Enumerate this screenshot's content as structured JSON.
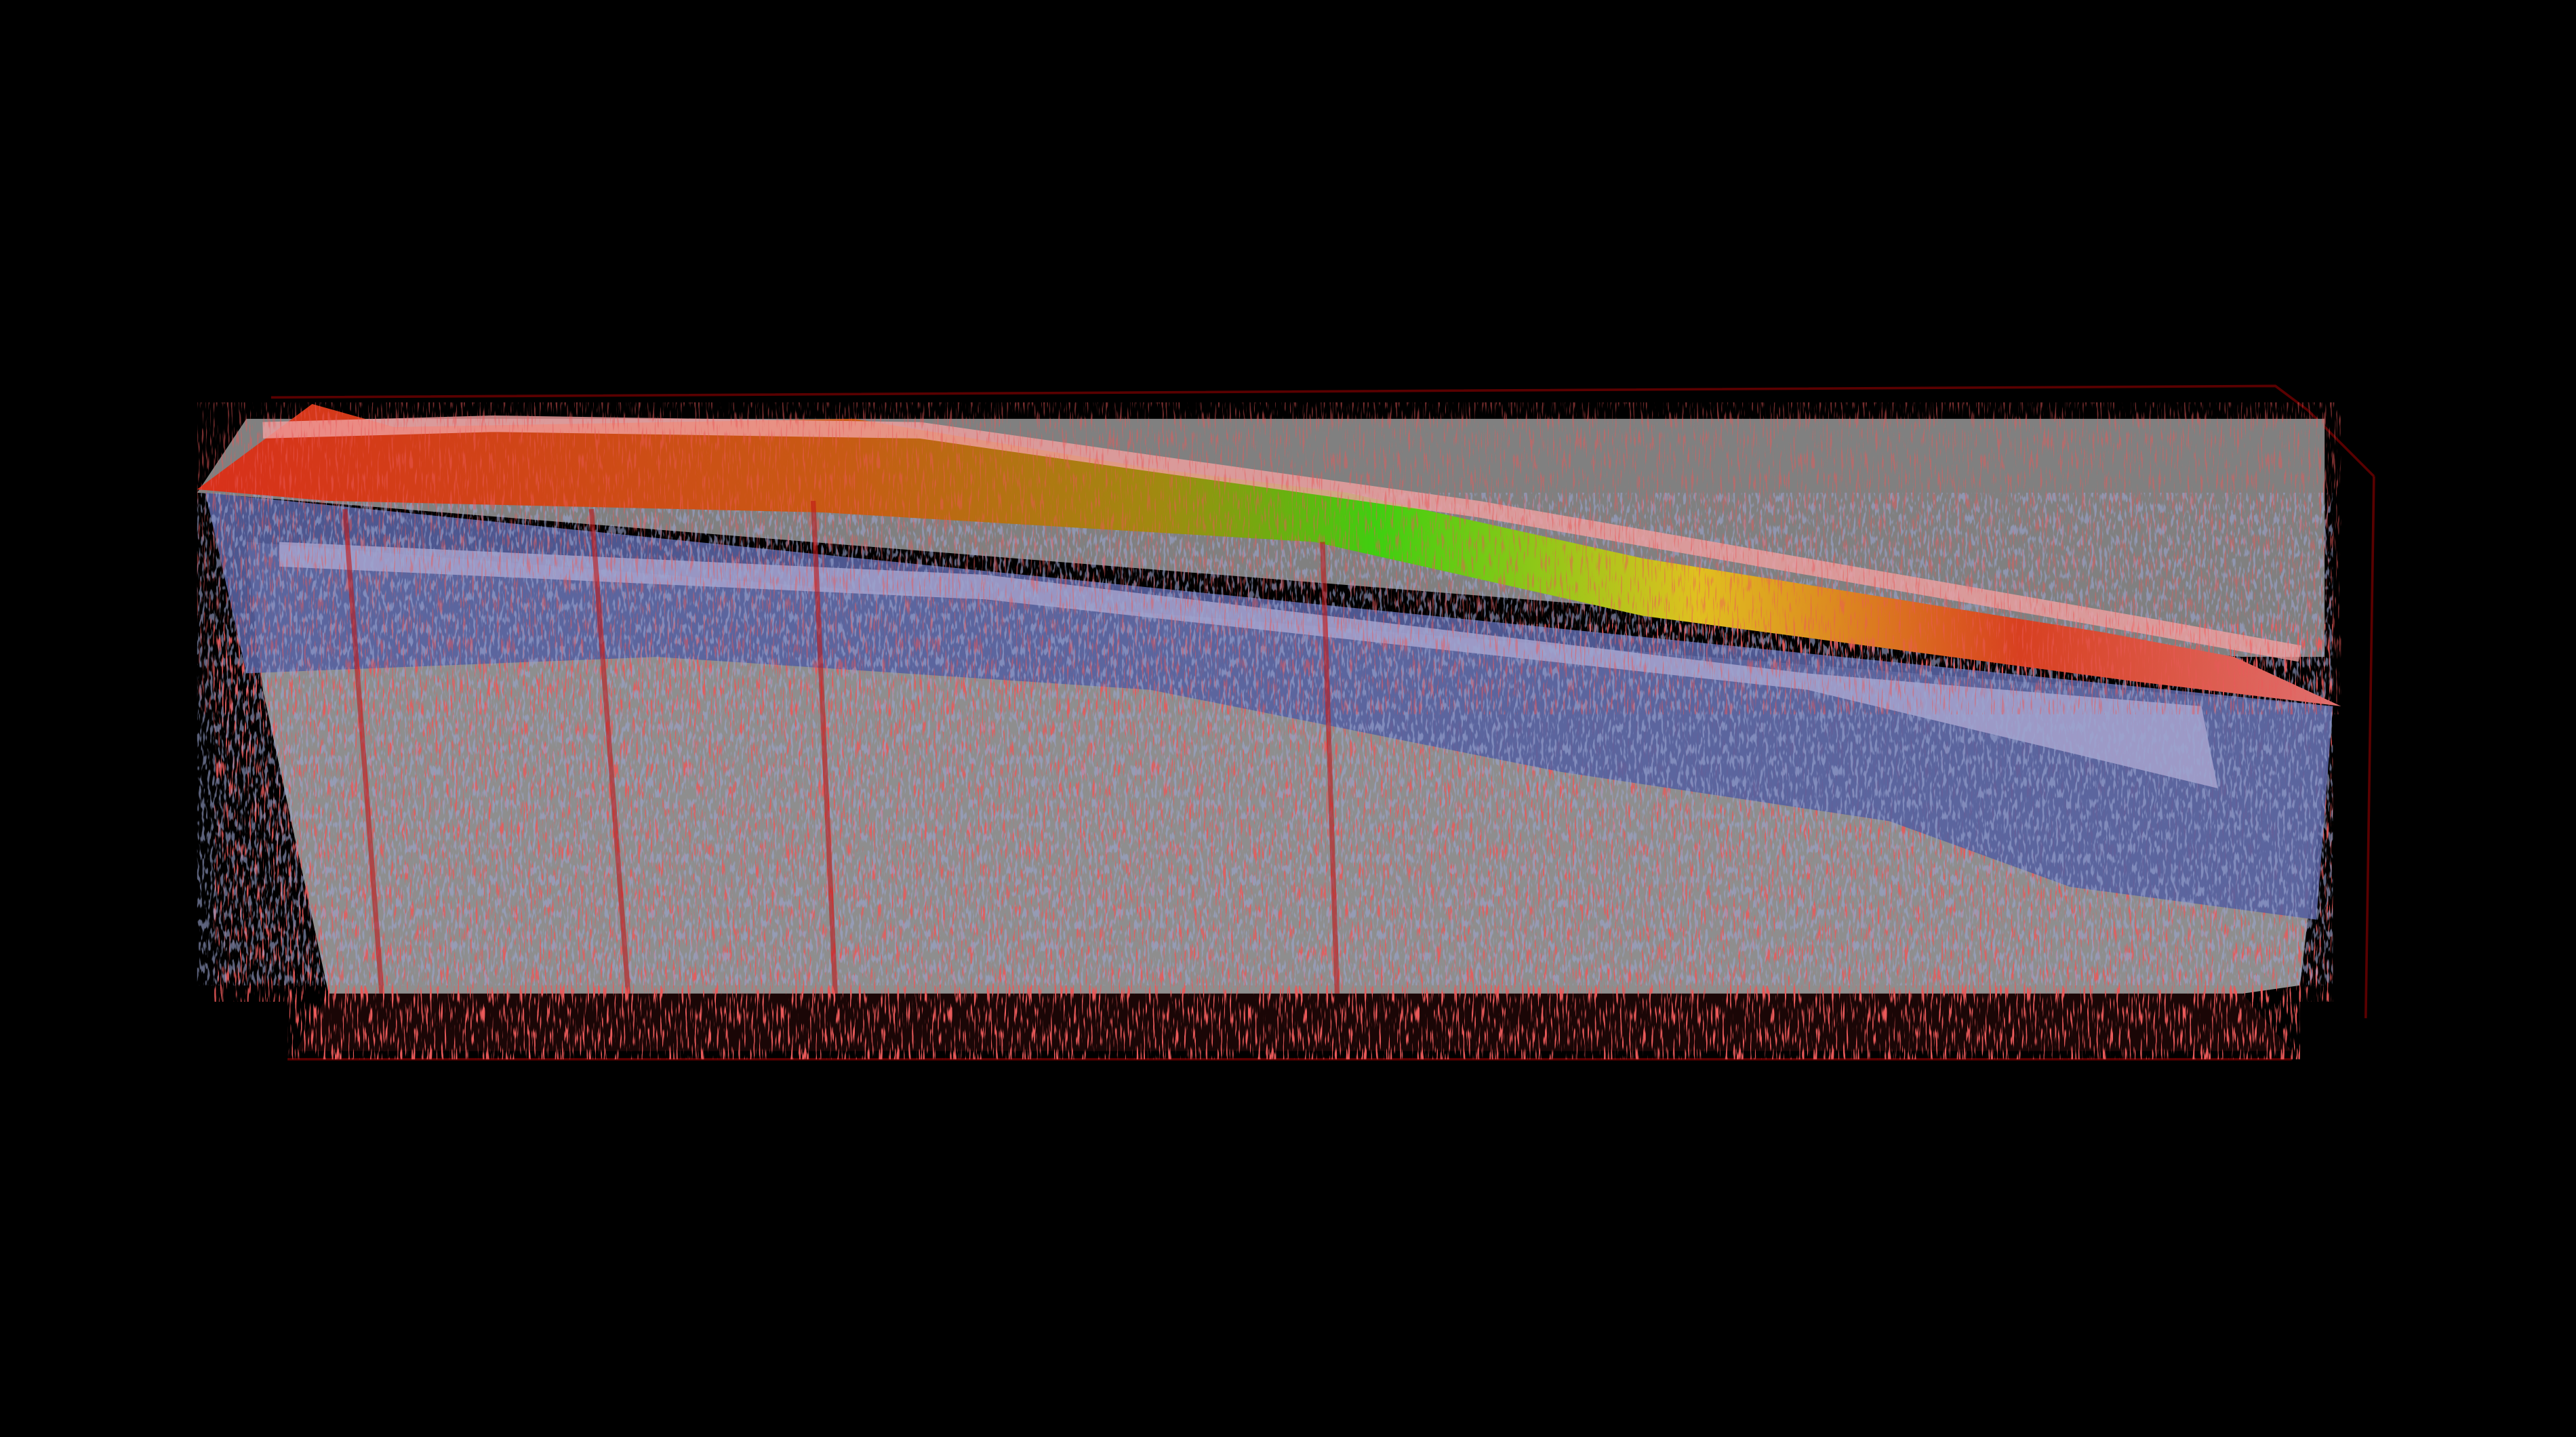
{
  "scene": {
    "type": "3d-volume-rendering",
    "background_color": "#000000",
    "colors": {
      "back_panel": "#808080",
      "surface_red": "#d8301a",
      "surface_orange": "#c86a10",
      "surface_green": "#3fcf10",
      "surface_yellow": "#e0c020",
      "surface_highlight": "#f0a0a0",
      "layer_blue": "#5560a0",
      "layer_lavender": "#b8b0d8",
      "body_gray": "#8e8e8e",
      "speckle_red": "#d01818",
      "bounding_box_edge": "#5a0000"
    }
  }
}
